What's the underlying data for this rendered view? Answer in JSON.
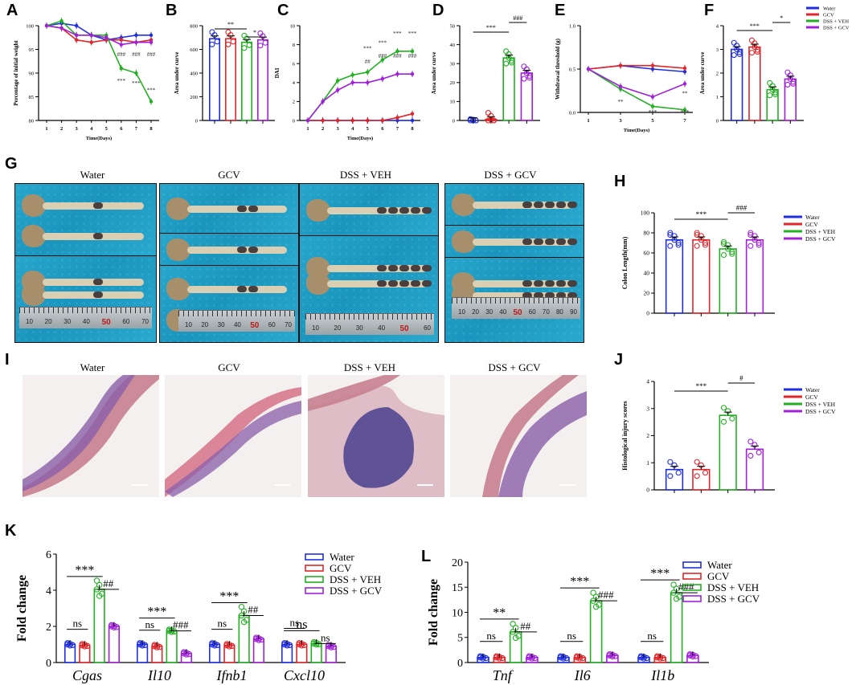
{
  "panels": {
    "A": "A",
    "B": "B",
    "C": "C",
    "D": "D",
    "E": "E",
    "F": "F",
    "G": "G",
    "H": "H",
    "I": "I",
    "J": "J",
    "K": "K",
    "L": "L"
  },
  "groups": [
    "Water",
    "GCV",
    "DSS + VEH",
    "DSS + GCV"
  ],
  "legend_labels": [
    "Water",
    "GCV",
    "DSS + VEH",
    "DSS + GCV"
  ],
  "colors": {
    "water": "#1f2ee0",
    "gcv": "#e0262a",
    "dss_veh": "#22b022",
    "dss_gcv": "#a020d8"
  },
  "photos": {
    "titles": [
      "Water",
      "GCV",
      "DSS + VEH",
      "DSS + GCV"
    ],
    "ruler_ticks_1": [
      "10",
      "20",
      "30",
      "40",
      "50",
      "60",
      "70"
    ],
    "ruler_ticks_2": [
      "10",
      "20",
      "30",
      "40",
      "50",
      "60",
      "70"
    ],
    "ruler_ticks_3": [
      "10",
      "20",
      "30",
      "40",
      "50",
      "60"
    ],
    "ruler_ticks_4": [
      "10",
      "20",
      "30",
      "40",
      "50",
      "60",
      "70",
      "80",
      "90"
    ]
  },
  "histology": {
    "titles": [
      "Water",
      "GCV",
      "DSS + VEH",
      "DSS + GCV"
    ]
  },
  "chart_data": [
    {
      "id": "A",
      "type": "line",
      "xlabel": "Time(Days)",
      "ylabel": "Percentage of initial weight",
      "x": [
        1,
        2,
        3,
        4,
        5,
        6,
        7,
        8
      ],
      "ylim": [
        80,
        100
      ],
      "yticks": [
        "80",
        "85",
        "90",
        "95",
        "100"
      ],
      "series": [
        {
          "name": "Water",
          "values": [
            100,
            100.5,
            100,
            98,
            97,
            97.5,
            98,
            98
          ]
        },
        {
          "name": "GCV",
          "values": [
            100,
            99.5,
            97,
            96.5,
            97,
            97,
            96.5,
            97
          ]
        },
        {
          "name": "DSS + VEH",
          "values": [
            100,
            101,
            98,
            98,
            98,
            91,
            90,
            84
          ]
        },
        {
          "name": "DSS + GCV",
          "values": [
            100,
            99.5,
            98,
            98,
            97.5,
            96,
            96.5,
            96.5
          ]
        }
      ],
      "annotations": [
        "***",
        "***",
        "***",
        "###",
        "###",
        "###"
      ]
    },
    {
      "id": "B",
      "type": "bar",
      "ylabel": "Area under curve",
      "ylim": [
        0,
        800
      ],
      "yticks": [
        "0",
        "200",
        "400",
        "600",
        "800"
      ],
      "categories": [
        "Water",
        "GCV",
        "DSS + VEH",
        "DSS + GCV"
      ],
      "values": [
        690,
        690,
        660,
        680
      ],
      "annotations": [
        "**",
        "*"
      ]
    },
    {
      "id": "C",
      "type": "line",
      "xlabel": "Time(Days)",
      "ylabel": "DAI",
      "x": [
        1,
        2,
        3,
        4,
        5,
        6,
        7,
        8
      ],
      "ylim": [
        0,
        10
      ],
      "yticks": [
        "0",
        "2",
        "4",
        "6",
        "8",
        "10"
      ],
      "series": [
        {
          "name": "Water",
          "values": [
            0,
            0,
            0,
            0,
            0,
            0,
            0,
            0
          ]
        },
        {
          "name": "GCV",
          "values": [
            0,
            0,
            0,
            0,
            0,
            0,
            0.3,
            0.7
          ]
        },
        {
          "name": "DSS + VEH",
          "values": [
            0,
            2,
            4.2,
            4.8,
            5.1,
            6.4,
            7.3,
            7.3
          ]
        },
        {
          "name": "DSS + GCV",
          "values": [
            0,
            2,
            3.2,
            4,
            4,
            4.4,
            4.9,
            4.9
          ]
        }
      ],
      "annotations": [
        "***",
        "***",
        "***",
        "***",
        "##",
        "###",
        "###",
        "###"
      ]
    },
    {
      "id": "D",
      "type": "bar",
      "ylabel": "Area under curve",
      "ylim": [
        0,
        50
      ],
      "yticks": [
        "0",
        "10",
        "20",
        "30",
        "40",
        "50"
      ],
      "categories": [
        "Water",
        "GCV",
        "DSS + VEH",
        "DSS + GCV"
      ],
      "values": [
        0,
        0.5,
        33,
        25
      ],
      "annotations": [
        "***",
        "###"
      ]
    },
    {
      "id": "E",
      "type": "line",
      "xlabel": "Time(Days)",
      "ylabel": "Withdrawal threshold (g)",
      "x": [
        1,
        3,
        5,
        7
      ],
      "ylim": [
        0,
        1
      ],
      "yticks": [
        "0.0",
        "0.5",
        "1.0"
      ],
      "series": [
        {
          "name": "Water",
          "values": [
            0.5,
            0.54,
            0.5,
            0.47
          ]
        },
        {
          "name": "GCV",
          "values": [
            0.5,
            0.54,
            0.54,
            0.51
          ]
        },
        {
          "name": "DSS + VEH",
          "values": [
            0.5,
            0.27,
            0.07,
            0.03
          ]
        },
        {
          "name": "DSS + GCV",
          "values": [
            0.5,
            0.3,
            0.18,
            0.33
          ]
        }
      ],
      "annotations": [
        "**",
        "***",
        "***",
        "**"
      ]
    },
    {
      "id": "F",
      "type": "bar",
      "ylabel": "Area under curve",
      "ylim": [
        0,
        4
      ],
      "yticks": [
        "0",
        "1",
        "2",
        "3",
        "4"
      ],
      "categories": [
        "Water",
        "GCV",
        "DSS + VEH",
        "DSS + GCV"
      ],
      "values": [
        3.0,
        3.1,
        1.3,
        1.75
      ],
      "annotations": [
        "***",
        "*"
      ]
    },
    {
      "id": "H",
      "type": "bar",
      "ylabel": "Colon Length(mm)",
      "ylim": [
        0,
        100
      ],
      "yticks": [
        "0",
        "20",
        "40",
        "60",
        "80",
        "100"
      ],
      "categories": [
        "Water",
        "GCV",
        "DSS + VEH",
        "DSS + GCV"
      ],
      "values": [
        73,
        73,
        64,
        73
      ],
      "annotations": [
        "***",
        "###"
      ]
    },
    {
      "id": "J",
      "type": "bar",
      "ylabel": "Histological injury scores",
      "ylim": [
        0,
        4
      ],
      "yticks": [
        "0",
        "1",
        "2",
        "3",
        "4"
      ],
      "categories": [
        "Water",
        "GCV",
        "DSS + VEH",
        "DSS + GCV"
      ],
      "values": [
        0.75,
        0.75,
        2.75,
        1.5
      ],
      "annotations": [
        "***",
        "#"
      ]
    },
    {
      "id": "K",
      "type": "bar",
      "ylabel": "Fold change",
      "ylim": [
        0,
        6
      ],
      "yticks": [
        "0",
        "2",
        "4",
        "6"
      ],
      "categories": [
        "Cgas",
        "Il10",
        "Ifnb1",
        "Cxcl10"
      ],
      "series": [
        {
          "name": "Water",
          "values": [
            1.0,
            1.0,
            1.0,
            1.0
          ]
        },
        {
          "name": "GCV",
          "values": [
            0.95,
            0.9,
            0.95,
            1.0
          ]
        },
        {
          "name": "DSS + VEH",
          "values": [
            4.05,
            1.75,
            2.6,
            1.05
          ]
        },
        {
          "name": "DSS + GCV",
          "values": [
            2.0,
            0.5,
            1.3,
            0.9
          ]
        }
      ],
      "annotations": [
        {
          "left": "ns",
          "mid": "***",
          "right": "##"
        },
        {
          "left": "ns",
          "mid": "***",
          "right": "###"
        },
        {
          "left": "ns",
          "mid": "***",
          "right": "##"
        },
        {
          "left": "ns",
          "mid": "ns",
          "right": "ns"
        }
      ]
    },
    {
      "id": "L",
      "type": "bar",
      "ylabel": "Fold change",
      "ylim": [
        0,
        20
      ],
      "yticks": [
        "0",
        "5",
        "10",
        "15",
        "20"
      ],
      "categories": [
        "Tnf",
        "Il6",
        "Il1b"
      ],
      "series": [
        {
          "name": "Water",
          "values": [
            1.0,
            1.0,
            1.0
          ]
        },
        {
          "name": "GCV",
          "values": [
            1.0,
            1.0,
            1.0
          ]
        },
        {
          "name": "DSS + VEH",
          "values": [
            6.1,
            12.3,
            13.9
          ]
        },
        {
          "name": "DSS + GCV",
          "values": [
            1.0,
            1.4,
            1.4
          ]
        }
      ],
      "annotations": [
        {
          "left": "ns",
          "mid": "**",
          "right": "##"
        },
        {
          "left": "ns",
          "mid": "***",
          "right": "###"
        },
        {
          "left": "ns",
          "mid": "***",
          "right": "###"
        }
      ]
    }
  ]
}
